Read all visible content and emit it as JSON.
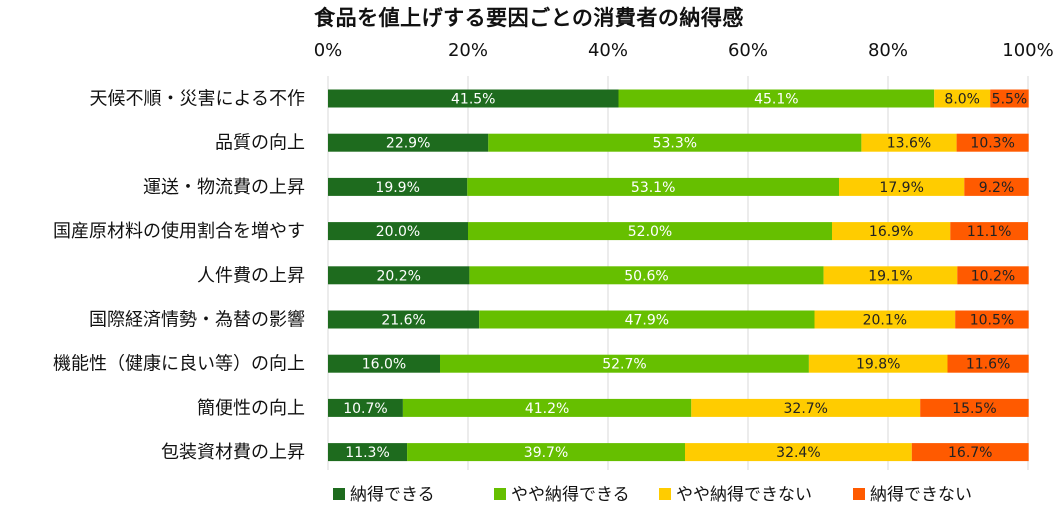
{
  "chart_data": {
    "type": "bar",
    "orientation": "horizontal",
    "stacked": true,
    "title": "食品を値上げする要因ごとの消費者の納得感",
    "xlim": [
      0,
      100
    ],
    "x_ticks": [
      "0%",
      "20%",
      "40%",
      "60%",
      "80%",
      "100%"
    ],
    "grid": true,
    "legend_position": "bottom",
    "categories": [
      "天候不順・災害による不作",
      "品質の向上",
      "運送・物流費の上昇",
      "国産原材料の使用割合を増やす",
      "人件費の上昇",
      "国際経済情勢・為替の影響",
      "機能性（健康に良い等）の向上",
      "簡便性の向上",
      "包装資材費の上昇"
    ],
    "series": [
      {
        "name": "納得できる",
        "color": "#1e6b1e",
        "label_color": "#ffffff",
        "values": [
          41.5,
          22.9,
          19.9,
          20.0,
          20.2,
          21.6,
          16.0,
          10.7,
          11.3
        ],
        "labels": [
          "41.5%",
          "22.9%",
          "19.9%",
          "20.0%",
          "20.2%",
          "21.6%",
          "16.0%",
          "10.7%",
          "11.3%"
        ]
      },
      {
        "name": "やや納得できる",
        "color": "#66bf00",
        "label_color": "#ffffff",
        "values": [
          45.1,
          53.3,
          53.1,
          52.0,
          50.6,
          47.9,
          52.7,
          41.2,
          39.7
        ],
        "labels": [
          "45.1%",
          "53.3%",
          "53.1%",
          "52.0%",
          "50.6%",
          "47.9%",
          "52.7%",
          "41.2%",
          "39.7%"
        ]
      },
      {
        "name": "やや納得できない",
        "color": "#ffcc00",
        "label_color": "#222222",
        "values": [
          8.0,
          13.6,
          17.9,
          16.9,
          19.1,
          20.1,
          19.8,
          32.7,
          32.4
        ],
        "labels": [
          "8.0%",
          "13.6%",
          "17.9%",
          "16.9%",
          "19.1%",
          "20.1%",
          "19.8%",
          "32.7%",
          "32.4%"
        ]
      },
      {
        "name": "納得できない",
        "color": "#ff5a00",
        "label_color": "#222222",
        "values": [
          5.5,
          10.3,
          9.2,
          11.1,
          10.2,
          10.5,
          11.6,
          15.5,
          16.7
        ],
        "labels": [
          "5.5%",
          "10.3%",
          "9.2%",
          "11.1%",
          "10.2%",
          "10.5%",
          "11.6%",
          "15.5%",
          "16.7%"
        ]
      }
    ]
  }
}
